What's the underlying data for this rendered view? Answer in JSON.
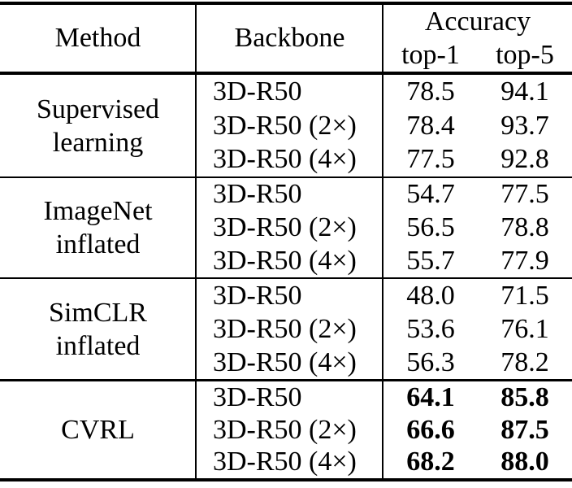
{
  "table": {
    "header": {
      "method": "Method",
      "backbone": "Backbone",
      "accuracy": "Accuracy",
      "top1": "top-1",
      "top5": "top-5"
    },
    "groups": [
      {
        "method_lines": [
          "Supervised",
          "learning"
        ],
        "rows": [
          {
            "backbone": "3D-R50",
            "top1": "78.5",
            "top5": "94.1"
          },
          {
            "backbone": "3D-R50 (2×)",
            "top1": "78.4",
            "top5": "93.7"
          },
          {
            "backbone": "3D-R50 (4×)",
            "top1": "77.5",
            "top5": "92.8"
          }
        ]
      },
      {
        "method_lines": [
          "ImageNet",
          "inflated"
        ],
        "rows": [
          {
            "backbone": "3D-R50",
            "top1": "54.7",
            "top5": "77.5"
          },
          {
            "backbone": "3D-R50 (2×)",
            "top1": "56.5",
            "top5": "78.8"
          },
          {
            "backbone": "3D-R50 (4×)",
            "top1": "55.7",
            "top5": "77.9"
          }
        ]
      },
      {
        "method_lines": [
          "SimCLR",
          "inflated"
        ],
        "rows": [
          {
            "backbone": "3D-R50",
            "top1": "48.0",
            "top5": "71.5"
          },
          {
            "backbone": "3D-R50 (2×)",
            "top1": "53.6",
            "top5": "76.1"
          },
          {
            "backbone": "3D-R50 (4×)",
            "top1": "56.3",
            "top5": "78.2"
          }
        ]
      },
      {
        "method_lines": [
          "CVRL"
        ],
        "bold_accuracy": true,
        "rows": [
          {
            "backbone": "3D-R50",
            "top1": "64.1",
            "top5": "85.8"
          },
          {
            "backbone": "3D-R50 (2×)",
            "top1": "66.6",
            "top5": "87.5"
          },
          {
            "backbone": "3D-R50 (4×)",
            "top1": "68.2",
            "top5": "88.0"
          }
        ]
      }
    ],
    "colors": {
      "text": "#000000",
      "background": "#ffffff",
      "rule": "#000000"
    }
  }
}
